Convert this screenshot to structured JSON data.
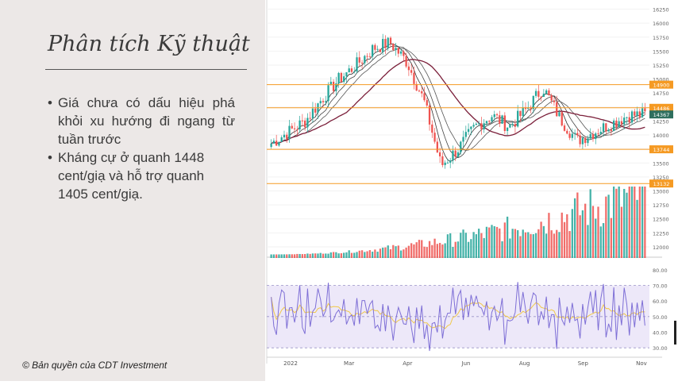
{
  "slide": {
    "title": "Phân tích Kỹ thuật",
    "bullets": [
      "Giá chưa có dấu hiệu phá khỏi xu hướng đi ngang từ tuần trước",
      "Kháng cự ở quanh 1448 cent/giạ và hỗ trợ quanh 1405 cent/giạ."
    ],
    "copyright": "© Bản quyền của CDT Investment"
  },
  "chart_data": {
    "type": "candlestick",
    "price_axis": {
      "ticks": [
        "16250",
        "16000",
        "15750",
        "15500",
        "15250",
        "15000",
        "14750",
        "14500",
        "14250",
        "14000",
        "13750",
        "13500",
        "13250",
        "13000",
        "12750",
        "12500",
        "12250",
        "12000"
      ]
    },
    "horizontal_levels": [
      {
        "value": "14900",
        "color": "#f59a23"
      },
      {
        "value": "14486",
        "color": "#f59a23"
      },
      {
        "value": "14367",
        "color": "#2f6f5e"
      },
      {
        "value": "13744",
        "color": "#f59a23"
      },
      {
        "value": "13132",
        "color": "#f59a23"
      }
    ],
    "rsi_axis": {
      "ticks": [
        "80.00",
        "70.00",
        "60.00",
        "50.00",
        "40.00",
        "30.00"
      ],
      "overbought": 70,
      "oversold": 30
    },
    "x_axis": {
      "labels": [
        "2022",
        "Mar",
        "Apr",
        "Jun",
        "Aug",
        "Sep",
        "Nov"
      ]
    },
    "series_colors": {
      "up": "#26a69a",
      "down": "#ef5350",
      "ma_long": "#7b1f3a",
      "ma_short": "#333333",
      "rsi": "#7e6fd6",
      "rsi_signal": "#f0c84a"
    },
    "close_estimates": [
      13850,
      14050,
      14250,
      14650,
      15000,
      15250,
      15550,
      15650,
      15300,
      14600,
      13450,
      13750,
      14150,
      14350,
      14150,
      14450,
      14850,
      14300,
      13900,
      14050,
      14200,
      14350,
      14367
    ]
  }
}
